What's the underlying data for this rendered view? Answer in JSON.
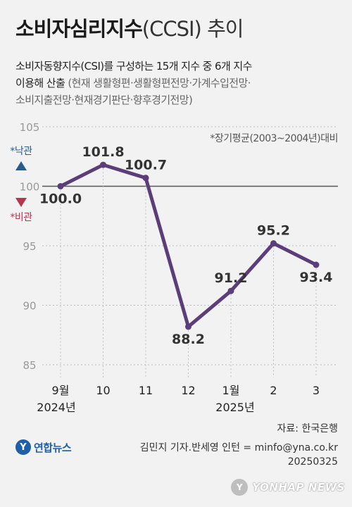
{
  "header": {
    "title_main": "소비자심리지수",
    "title_sub": "(CCSI) 추이",
    "desc_line1": "소비자동향지수(CSI)를 구성하는 15개 지수 중 6개 지수",
    "desc_line2_dark": "이용해 산출",
    "desc_line2_gray": "(현재 생활형편·생활형편전망·가계수입전망·",
    "desc_line3": "소비지출전망·현재경기판단·향후경기전망)"
  },
  "note": "*장기평균(2003~2004년)대비",
  "legend": {
    "optimism": "*낙관",
    "pessimism": "*비관"
  },
  "chart_data": {
    "type": "line",
    "categories": [
      "9월",
      "10",
      "11",
      "12",
      "1월",
      "2",
      "3"
    ],
    "year_labels": [
      {
        "index": 0,
        "text": "2024년"
      },
      {
        "index": 4,
        "text": "2025년"
      }
    ],
    "series": [
      {
        "values": [
          100.0,
          101.8,
          100.7,
          88.2,
          91.2,
          95.2,
          93.4
        ]
      }
    ],
    "value_labels": [
      "100.0",
      "101.8",
      "100.7",
      "88.2",
      "91.2",
      "95.2",
      "93.4"
    ],
    "ylim": [
      85,
      105
    ],
    "yticks": [
      85,
      90,
      95,
      100,
      105
    ],
    "baseline": 100,
    "colors": {
      "line": "#5b3d7a",
      "grid": "#bdbdbd",
      "baseline": "#555555"
    }
  },
  "footer": {
    "source": "자료: 한국은행",
    "logo_text": "연합뉴스",
    "credit_line1": "김민지 기자.반세영 인턴 = minfo@yna.co.kr",
    "credit_line2": "20250325",
    "watermark": "YONHAP NEWS"
  }
}
